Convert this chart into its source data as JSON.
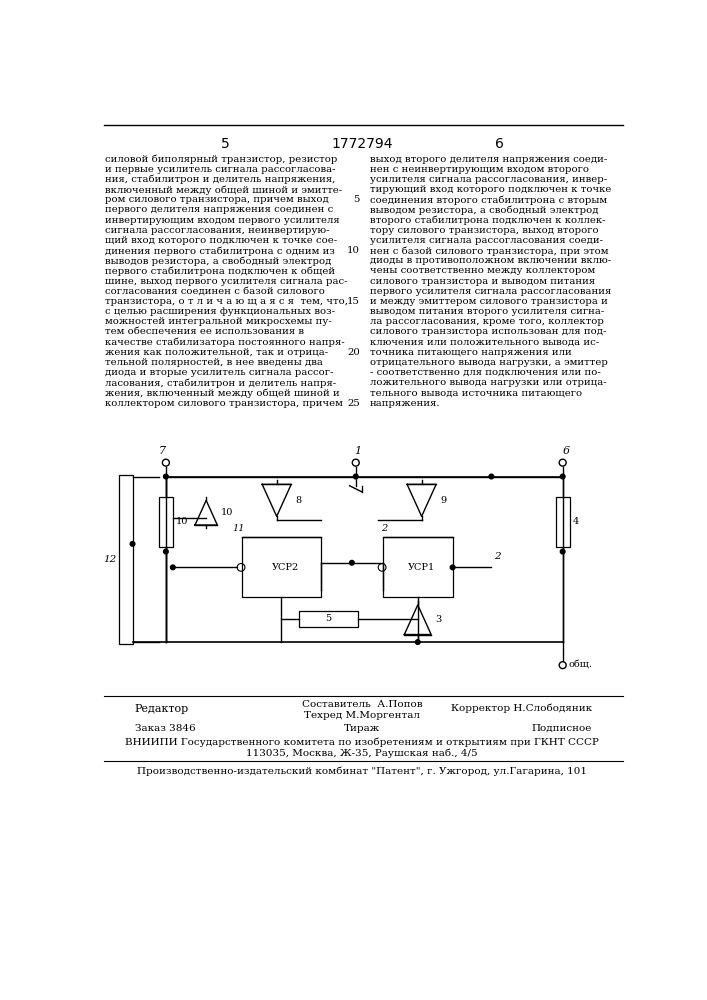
{
  "page_number_left": "5",
  "patent_number": "1772794",
  "page_number_right": "6",
  "left_column_text": [
    "силовой биполярный транзистор, резистор",
    "и первые усилитель сигнала рассогласова-",
    "ния, стабилитрон и делитель напряжения,",
    "включенный между общей шиной и эмитте-",
    "ром силового транзистора, причем выход",
    "первого делителя напряжения соединен с",
    "инвертирующим входом первого усилителя",
    "сигнала рассогласования, неинвертирую-",
    "щий вход которого подключен к точке сое-",
    "динения первого стабилитрона с одним из",
    "выводов резистора, а свободный электрод",
    "первого стабилитрона подключен к общей",
    "шине, выход первого усилителя сигнала рас-",
    "согласования соединен с базой силового",
    "транзистора, о т л и ч а ю щ а я с я  тем, что,",
    "с целью расширения функциональных воз-",
    "можностей интегральной микросхемы пу-",
    "тем обеспечения ее использования в",
    "качестве стабилизатора постоянного напря-",
    "жения как положительной, так и отрица-",
    "тельной полярностей, в нее введены два",
    "диода и вторые усилитель сигнала рассог-",
    "ласования, стабилитрон и делитель напря-",
    "жения, включенный между общей шиной и",
    "коллектором силового транзистора, причем"
  ],
  "right_column_text": [
    "выход второго делителя напряжения соеди-",
    "нен с неинвертирующим входом второго",
    "усилителя сигнала рассогласования, инвер-",
    "тирующий вход которого подключен к точке",
    "соединения второго стабилитрона с вторым",
    "выводом резистора, а свободный электрод",
    "второго стабилитрона подключен к коллек-",
    "тору силового транзистора, выход второго",
    "усилителя сигнала рассогласования соеди-",
    "нен с базой силового транзистора, при этом",
    "диоды в противоположном включении вклю-",
    "чены соответственно между коллектором",
    "силового транзистора и выводом питания",
    "первого усилителя сигнала рассогласования",
    "и между эмиттером силового транзистора и",
    "выводом питания второго усилителя сигна-",
    "ла рассогласования, кроме того, коллектор",
    "силового транзистора использован для под-",
    "ключения или положительного вывода ис-",
    "точника питающего напряжения или",
    "отрицательного вывода нагрузки, а эмиттер",
    "- соответственно для подключения или по-",
    "ложительного вывода нагрузки или отрица-",
    "тельного вывода источника питающего",
    "напряжения."
  ],
  "line_numbers": {
    "4": "5",
    "9": "10",
    "14": "15",
    "19": "20",
    "24": "25"
  },
  "editor_label": "Редактор",
  "compiler_label": "Составитель  А.Попов",
  "tech_label": "Техред М.Моргентал",
  "corrector_label": "Корректор Н.Слободяник",
  "order_label": "Заказ 3846",
  "circulation_label": "Тираж",
  "subscription_label": "Подписное",
  "vniiipi_line1": "ВНИИПИ Государственного комитета по изобретениям и открытиям при ГКНТ СССР",
  "vniiipi_line2": "113035, Москва, Ж-35, Раушская наб., 4/5",
  "publisher_line": "Производственно-издательский комбинат \"Патент\", г. Ужгород, ул.Гагарина, 101",
  "bg_color": "#ffffff",
  "text_color": "#000000"
}
